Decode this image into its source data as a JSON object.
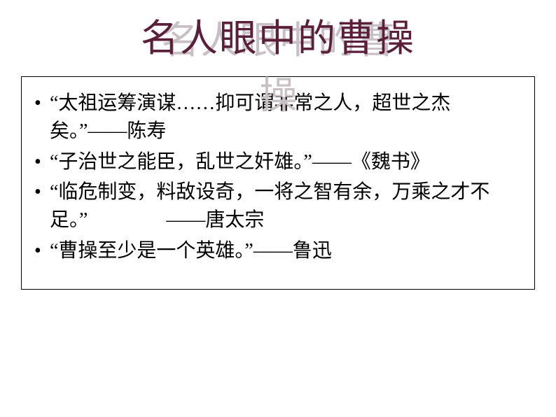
{
  "title": {
    "text": "名人眼中的曹操",
    "color": "#5c1f3a",
    "shadow_color": "#c8c0c4",
    "fontsize": 54,
    "font_family": "SimSun"
  },
  "content_box": {
    "border_color": "#000000",
    "background": "#ffffff",
    "bullet_color": "#000000",
    "text_color": "#000000",
    "fontsize": 28,
    "line_height": 1.42,
    "items": [
      "“太祖运筹演谋……抑可谓非常之人，超世之杰矣。”——陈寿",
      "“子治世之能臣，乱世之奸雄。”——《魏书》",
      "“临危制变，料敌设奇，一将之智有余，万乘之才不足。”　　　　——唐太宗",
      "“曹操至少是一个英雄。”——鲁迅"
    ]
  },
  "background_color": "#ffffff"
}
